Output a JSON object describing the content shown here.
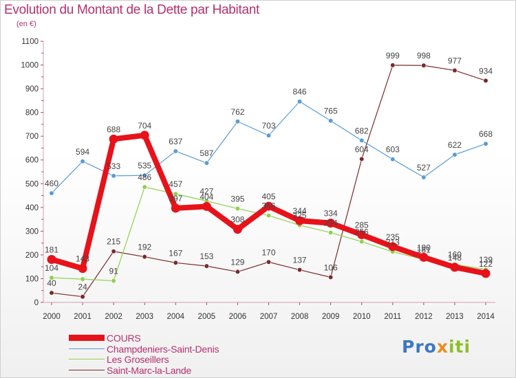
{
  "title": "Evolution du Montant de la Dette par Habitant",
  "subtitle": "(en €)",
  "logo": {
    "part1": "Pro",
    "part2": "x",
    "part3": "iti"
  },
  "chart_data": {
    "type": "line",
    "title": "Evolution du Montant de la Dette par Habitant",
    "ylabel": "(en €)",
    "xlabel": "",
    "x": [
      "2000",
      "2001",
      "2002",
      "2003",
      "2004",
      "2005",
      "2006",
      "2007",
      "2008",
      "2009",
      "2010",
      "2011",
      "2012",
      "2013",
      "2014"
    ],
    "ylim": [
      0,
      1100
    ],
    "yticks": [
      "0",
      "100",
      "200",
      "300",
      "400",
      "500",
      "600",
      "700",
      "800",
      "900",
      "1000",
      "1100"
    ],
    "grid": false,
    "legend_position": "bottom-left",
    "series": [
      {
        "name": "COURS",
        "color": "#e8121a",
        "values": [
          181,
          143,
          688,
          704,
          397,
          404,
          308,
          405,
          344,
          334,
          285,
          235,
          190,
          148,
          122
        ]
      },
      {
        "name": "Champdeniers-Saint-Denis",
        "color": "#5b9bd5",
        "values": [
          460,
          594,
          533,
          535,
          637,
          587,
          762,
          703,
          846,
          765,
          682,
          603,
          527,
          622,
          668
        ]
      },
      {
        "name": "Les Groseillers",
        "color": "#8ed14b",
        "values": [
          104,
          98,
          91,
          486,
          457,
          427,
          395,
          366,
          325,
          294,
          256,
          213,
          181,
          160,
          139
        ]
      },
      {
        "name": "Saint-Marc-la-Lande",
        "color": "#7a2a2a",
        "values": [
          40,
          24,
          215,
          192,
          167,
          153,
          129,
          170,
          137,
          106,
          604,
          999,
          998,
          977,
          934
        ]
      }
    ],
    "labels": {
      "COURS": [
        "181",
        "143",
        "688",
        "704",
        "397",
        "404",
        "308",
        "405",
        "344",
        "334",
        "285",
        "235",
        "190",
        "148",
        "122"
      ],
      "Champdeniers-Saint-Denis": [
        "460",
        "594",
        "533",
        "535",
        "637",
        "587",
        "762",
        "703",
        "846",
        "765",
        "682",
        "603",
        "527",
        "622",
        "668"
      ],
      "Les Groseillers": [
        "104",
        "",
        "91",
        "486",
        "457",
        "427",
        "395",
        "366",
        "325",
        "294",
        "256",
        "213",
        "181",
        "160",
        "139"
      ],
      "Saint-Marc-la-Lande": [
        "40",
        "24",
        "215",
        "192",
        "167",
        "153",
        "129",
        "170",
        "137",
        "106",
        "604",
        "999",
        "998",
        "977",
        "934"
      ]
    }
  }
}
